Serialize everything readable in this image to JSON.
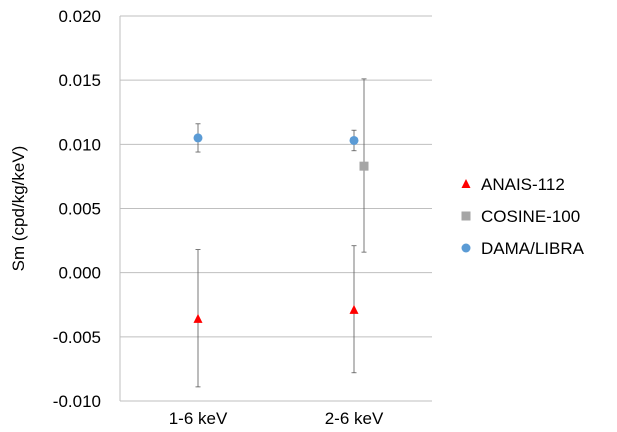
{
  "chart_data": {
    "type": "scatter",
    "categories": [
      "1-6 keV",
      "2-6 keV"
    ],
    "ylabel": "Sm (cpd/kg/keV)",
    "ylim": [
      -0.01,
      0.02
    ],
    "yticks": [
      "0.020",
      "0.015",
      "0.010",
      "0.005",
      "0.000",
      "-0.005",
      "-0.010"
    ],
    "ytick_values": [
      0.02,
      0.015,
      0.01,
      0.005,
      0.0,
      -0.005,
      -0.01
    ],
    "grid": true,
    "legend_position": "right",
    "series": [
      {
        "name": "ANAIS-112",
        "marker": "triangle",
        "color": "#ff0000",
        "points": [
          {
            "category": "1-6 keV",
            "y": -0.0036,
            "err_low": -0.0089,
            "err_high": 0.0018
          },
          {
            "category": "2-6 keV",
            "y": -0.0029,
            "err_low": -0.0078,
            "err_high": 0.0021
          }
        ]
      },
      {
        "name": "COSINE-100",
        "marker": "square",
        "color": "#a6a6a6",
        "points": [
          {
            "category": "2-6 keV",
            "y": 0.0083,
            "err_low": 0.0016,
            "err_high": 0.0151
          }
        ]
      },
      {
        "name": "DAMA/LIBRA",
        "marker": "circle",
        "color": "#5b9bd5",
        "points": [
          {
            "category": "1-6 keV",
            "y": 0.0105,
            "err_low": 0.0094,
            "err_high": 0.0116
          },
          {
            "category": "2-6 keV",
            "y": 0.0103,
            "err_low": 0.0095,
            "err_high": 0.0111
          }
        ]
      }
    ]
  }
}
